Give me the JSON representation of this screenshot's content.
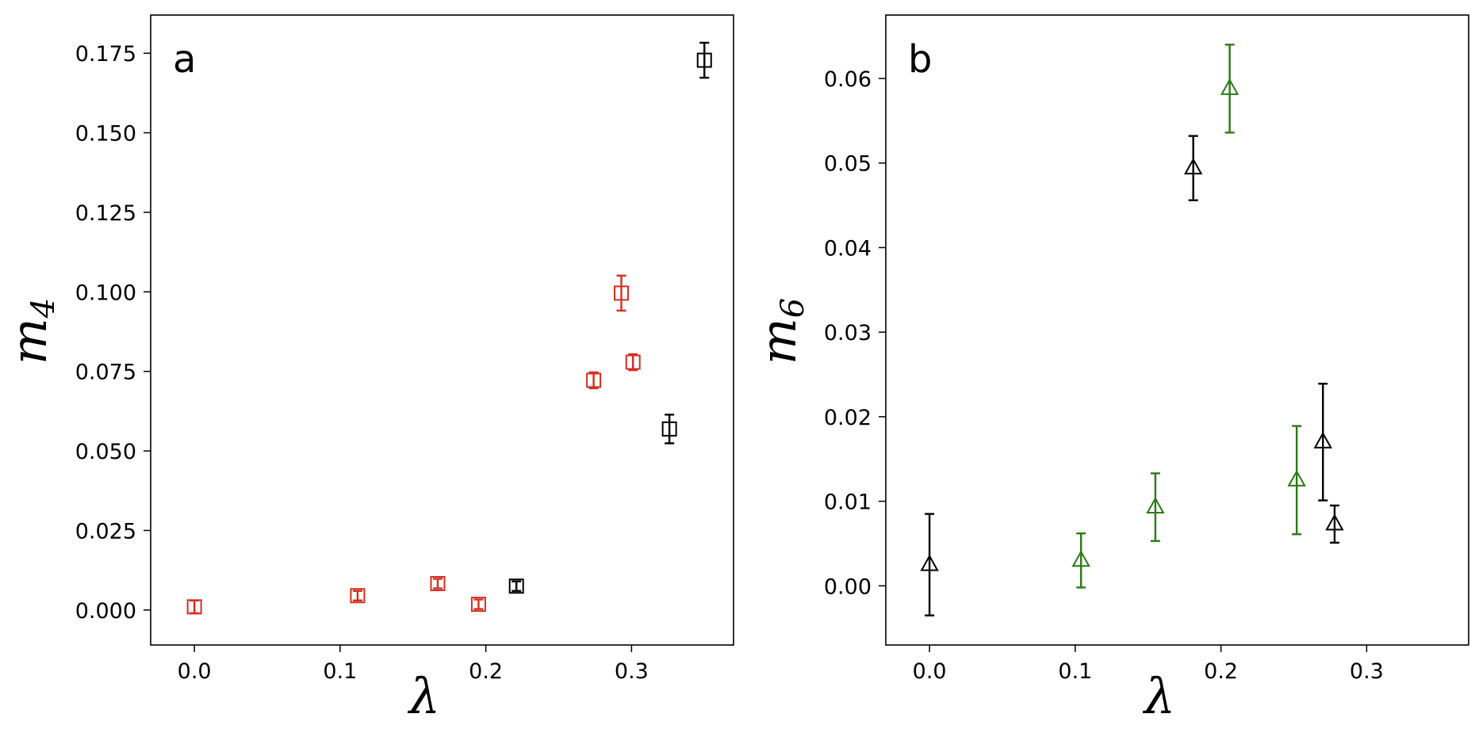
{
  "chart_data": [
    {
      "type": "scatter",
      "panel_label": "a",
      "xlabel": "λ",
      "ylabel": "m4",
      "ylabel_base": "m",
      "ylabel_sub": "4",
      "xlim": [
        -0.03,
        0.37
      ],
      "ylim": [
        -0.011,
        0.187
      ],
      "xticks": [
        0.0,
        0.1,
        0.2,
        0.3
      ],
      "xtick_labels": [
        "0.0",
        "0.1",
        "0.2",
        "0.3"
      ],
      "yticks": [
        0.0,
        0.025,
        0.05,
        0.075,
        0.1,
        0.125,
        0.15,
        0.175
      ],
      "ytick_labels": [
        "0.000",
        "0.025",
        "0.050",
        "0.075",
        "0.100",
        "0.125",
        "0.150",
        "0.175"
      ],
      "grid": false,
      "series": [
        {
          "color": "#d62d20",
          "marker": "square",
          "points": [
            {
              "x": 0.0,
              "y": 0.001,
              "err": 0.002
            },
            {
              "x": 0.112,
              "y": 0.0045,
              "err": 0.0015
            },
            {
              "x": 0.167,
              "y": 0.0083,
              "err": 0.0015
            },
            {
              "x": 0.195,
              "y": 0.0018,
              "err": 0.0015
            },
            {
              "x": 0.274,
              "y": 0.0722,
              "err": 0.0025
            },
            {
              "x": 0.293,
              "y": 0.0996,
              "err": 0.0055
            },
            {
              "x": 0.301,
              "y": 0.0779,
              "err": 0.0025
            }
          ]
        },
        {
          "color": "#000000",
          "marker": "square",
          "points": [
            {
              "x": 0.221,
              "y": 0.0075,
              "err": 0.0015
            },
            {
              "x": 0.326,
              "y": 0.0569,
              "err": 0.0045
            },
            {
              "x": 0.35,
              "y": 0.1728,
              "err": 0.0055
            }
          ]
        }
      ]
    },
    {
      "type": "scatter",
      "panel_label": "b",
      "xlabel": "λ",
      "ylabel": "m6",
      "ylabel_base": "m",
      "ylabel_sub": "6",
      "xlim": [
        -0.03,
        0.37
      ],
      "ylim": [
        -0.007,
        0.0675
      ],
      "xticks": [
        0.0,
        0.1,
        0.2,
        0.3
      ],
      "xtick_labels": [
        "0.0",
        "0.1",
        "0.2",
        "0.3"
      ],
      "yticks": [
        0.0,
        0.01,
        0.02,
        0.03,
        0.04,
        0.05,
        0.06
      ],
      "ytick_labels": [
        "0.00",
        "0.01",
        "0.02",
        "0.03",
        "0.04",
        "0.05",
        "0.06"
      ],
      "grid": false,
      "series": [
        {
          "color": "#2a7a14",
          "marker": "triangle",
          "points": [
            {
              "x": 0.104,
              "y": 0.003,
              "err": 0.0032
            },
            {
              "x": 0.155,
              "y": 0.0093,
              "err": 0.004
            },
            {
              "x": 0.206,
              "y": 0.0588,
              "err": 0.0052
            },
            {
              "x": 0.252,
              "y": 0.0125,
              "err": 0.0064
            }
          ]
        },
        {
          "color": "#000000",
          "marker": "triangle",
          "points": [
            {
              "x": 0.0,
              "y": 0.0025,
              "err": 0.006
            },
            {
              "x": 0.181,
              "y": 0.0494,
              "err": 0.0038
            },
            {
              "x": 0.27,
              "y": 0.017,
              "err": 0.0069
            },
            {
              "x": 0.278,
              "y": 0.0073,
              "err": 0.0022
            }
          ]
        }
      ]
    }
  ]
}
